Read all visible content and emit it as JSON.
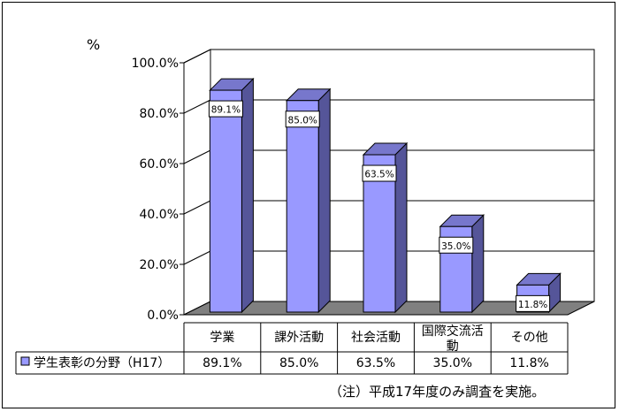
{
  "chart_data": {
    "type": "bar",
    "y_unit_label": "%",
    "categories": [
      "学業",
      "課外活動",
      "社会活動",
      "国際交流活動",
      "その他"
    ],
    "series": [
      {
        "name": "学生表彰の分野（H17）",
        "values": [
          89.1,
          85.0,
          63.5,
          35.0,
          11.8
        ],
        "data_labels": [
          "89.1%",
          "85.0%",
          "63.5%",
          "35.0%",
          "11.8%"
        ],
        "color": "#9999ff"
      }
    ],
    "ylim": [
      0,
      100
    ],
    "y_ticks": [
      "0.0%",
      "20.0%",
      "40.0%",
      "60.0%",
      "80.0%",
      "100.0%"
    ],
    "grid": true,
    "style": "3d-column",
    "data_table": true
  },
  "note": "（注）平成17年度のみ調査を実施。",
  "colors": {
    "bar_front": "#9999ff",
    "bar_top": "#7777cc",
    "bar_side": "#555599",
    "floor": "#808080"
  }
}
